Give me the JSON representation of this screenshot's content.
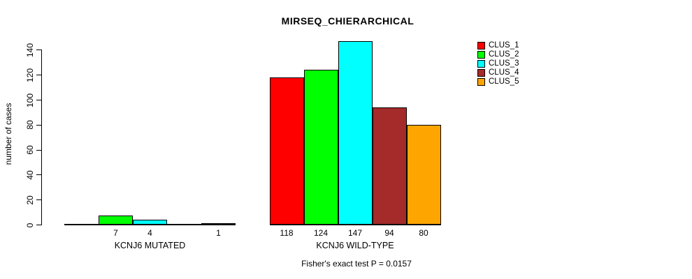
{
  "chart_data": {
    "type": "bar",
    "title": "MIRSEQ_CHIERARCHICAL",
    "xlabel": "",
    "ylabel": "number of cases",
    "annotation": "Fisher's exact test P = 0.0157",
    "groups": [
      {
        "label": "KCNJ6 MUTATED",
        "values": [
          0,
          7,
          4,
          0,
          1
        ]
      },
      {
        "label": "KCNJ6 WILD-TYPE",
        "values": [
          118,
          124,
          147,
          94,
          80
        ]
      }
    ],
    "series": [
      {
        "name": "CLUS_1",
        "color": "#FF0000"
      },
      {
        "name": "CLUS_2",
        "color": "#00FF00"
      },
      {
        "name": "CLUS_3",
        "color": "#00FFFF"
      },
      {
        "name": "CLUS_4",
        "color": "#A52A2A"
      },
      {
        "name": "CLUS_5",
        "color": "#FFA500"
      }
    ],
    "bar_value_labels": {
      "shown_for": "non-zero bars only",
      "group_1": [
        "7",
        "4",
        "1"
      ],
      "group_2": [
        "118",
        "124",
        "147",
        "94",
        "80"
      ]
    },
    "yticks": [
      0,
      20,
      40,
      60,
      80,
      100,
      120,
      140
    ],
    "ylim": [
      0,
      147
    ],
    "grid": false,
    "legend_position": "top-right",
    "plot_background": "#FFFFFF",
    "bar_border_color": "#000000"
  }
}
